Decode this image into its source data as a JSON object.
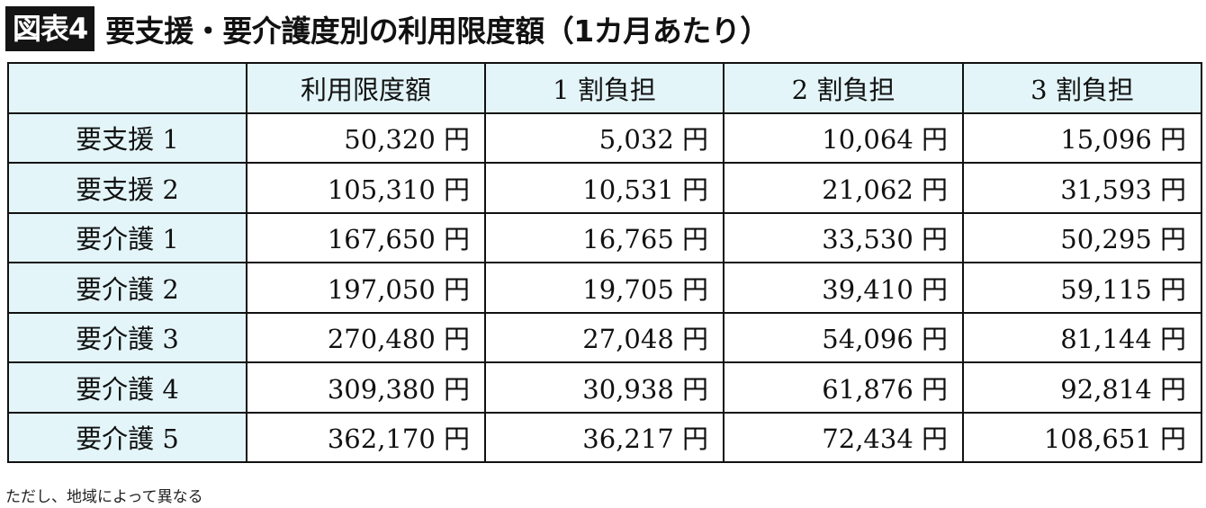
{
  "header": {
    "badge": "図表4",
    "title": "要支援・要介護度別の利用限度額（1カ月あたり）"
  },
  "table": {
    "columns": [
      "",
      "利用限度額",
      "1 割負担",
      "2 割負担",
      "3 割負担"
    ],
    "rows": [
      {
        "label": "要支援 1",
        "values": [
          "50,320 円",
          "5,032 円",
          "10,064 円",
          "15,096 円"
        ]
      },
      {
        "label": "要支援 2",
        "values": [
          "105,310 円",
          "10,531 円",
          "21,062 円",
          "31,593 円"
        ]
      },
      {
        "label": "要介護 1",
        "values": [
          "167,650 円",
          "16,765 円",
          "33,530 円",
          "50,295 円"
        ]
      },
      {
        "label": "要介護 2",
        "values": [
          "197,050 円",
          "19,705 円",
          "39,410 円",
          "59,115 円"
        ]
      },
      {
        "label": "要介護 3",
        "values": [
          "270,480 円",
          "27,048 円",
          "54,096 円",
          "81,144 円"
        ]
      },
      {
        "label": "要介護 4",
        "values": [
          "309,380 円",
          "30,938 円",
          "61,876 円",
          "92,814 円"
        ]
      },
      {
        "label": "要介護 5",
        "values": [
          "362,170 円",
          "36,217 円",
          "72,434 円",
          "108,651 円"
        ]
      }
    ]
  },
  "footnote": "ただし、地域によって異なる",
  "colors": {
    "header_fill": "#e3f5f9",
    "badge_bg": "#141414",
    "border": "#111111"
  }
}
